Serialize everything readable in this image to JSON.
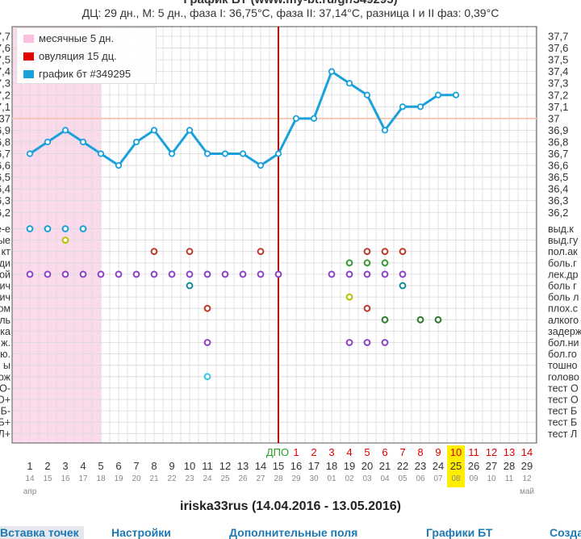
{
  "header": {
    "title": "График БТ (www.my-bt.ru/gr/349295)",
    "summary": "ДЦ: 29 дн., М: 5 дн., фаза I: 36,75°C, фаза II: 37,14°C, разница I и II фаз: 0,39°C",
    "footer": "iriska33rus (14.04.2016 - 13.05.2016)"
  },
  "legend": {
    "items": [
      {
        "label": "месячные 5 дн.",
        "color": "#f9c1dd"
      },
      {
        "label": "овуляция 15 дц.",
        "color": "#e00000"
      },
      {
        "label": "график бт #349295",
        "color": "#1aa1db"
      }
    ]
  },
  "nav": {
    "items": [
      "Вставка точек",
      "Настройки",
      "Дополнительные поля",
      "Графики БТ",
      "Создать"
    ]
  },
  "colors": {
    "temp_line": "#1aa1db",
    "menstruation": "#f9c1dd",
    "ovulation": "#c00000",
    "coverline": "#f4c6b6",
    "grid": "#d9d9d9",
    "dpo": "#28a028",
    "phase2_numbers": "#e00000",
    "today_highlight": "#ffee00"
  },
  "chart_data": {
    "type": "line",
    "title": "График БТ (www.my-bt.ru/gr/349295)",
    "x": [
      1,
      2,
      3,
      4,
      5,
      6,
      7,
      8,
      9,
      10,
      11,
      12,
      13,
      14,
      15,
      16,
      17,
      18,
      19,
      20,
      21,
      22,
      23,
      24,
      25,
      26,
      27,
      28,
      29
    ],
    "dates": [
      "14",
      "15",
      "16",
      "17",
      "18",
      "19",
      "20",
      "21",
      "22",
      "23",
      "24",
      "25",
      "26",
      "27",
      "28",
      "29",
      "30",
      "01",
      "02",
      "03",
      "04",
      "05",
      "06",
      "07",
      "08",
      "09",
      "10",
      "11",
      "12"
    ],
    "months": [
      {
        "label": "апр",
        "day": 1
      },
      {
        "label": "май",
        "day": 29
      }
    ],
    "series": [
      {
        "name": "график бт #349295",
        "values": [
          36.7,
          36.8,
          36.9,
          36.8,
          36.7,
          36.6,
          36.8,
          36.9,
          36.7,
          36.9,
          36.7,
          36.7,
          36.7,
          36.6,
          36.7,
          37.0,
          37.0,
          37.4,
          37.3,
          37.2,
          36.9,
          37.1,
          37.1,
          37.2,
          37.2,
          null,
          null,
          null,
          null
        ]
      }
    ],
    "ylim": [
      36.2,
      37.7
    ],
    "y_ticks": [
      "37,7",
      "37,6",
      "37,5",
      "37,4",
      "37,3",
      "37,2",
      "37,1",
      "37",
      "36,9",
      "36,8",
      "36,7",
      "36,6",
      "36,5",
      "36,4",
      "36,3",
      "36,2"
    ],
    "coverline": 37.0,
    "menstruation_days": [
      1,
      5
    ],
    "ovulation_day": 15,
    "dpo_label": "ДПО",
    "dpo_numbers": [
      "1",
      "2",
      "3",
      "4",
      "5",
      "6",
      "7",
      "8",
      "9",
      "10",
      "11",
      "12",
      "13",
      "14"
    ],
    "today_day": 25,
    "symptom_rows_left": [
      "е-е",
      "ые",
      "кт",
      "ди",
      "ой",
      "ич",
      "ич",
      "ом",
      "ль",
      "ка",
      "ж.",
      "ю.",
      "ы",
      "ож",
      "О-",
      "О+",
      "Б-",
      "Б+",
      "Л+"
    ],
    "symptom_rows_right": [
      "выд.к",
      "выд.гу",
      "пол.ак",
      "боль.г",
      "лек.др",
      "боль г",
      "боль л",
      "плох.с",
      "алкого",
      "задерж",
      "бол.ни",
      "бол.го",
      "тошно",
      "голово",
      "тест О",
      "тест О",
      "тест Б",
      "тест Б",
      "тест Л"
    ],
    "symptom_marks": [
      {
        "row": 0,
        "days": [
          1,
          2,
          3,
          4
        ],
        "color": "#1aa1db"
      },
      {
        "row": 1,
        "days": [
          3
        ],
        "color": "#b8c000"
      },
      {
        "row": 2,
        "days": [
          8,
          10,
          14,
          20,
          21,
          22
        ],
        "color": "#c0392b"
      },
      {
        "row": 3,
        "days": [
          19,
          20,
          21
        ],
        "color": "#3a9a3a"
      },
      {
        "row": 4,
        "days": [
          1,
          2,
          3,
          4,
          5,
          6,
          7,
          8,
          9,
          10,
          11,
          12,
          13,
          14,
          15,
          18,
          19,
          20,
          21,
          22
        ],
        "color": "#8b44c8"
      },
      {
        "row": 5,
        "days": [
          10,
          22
        ],
        "color": "#168a9a"
      },
      {
        "row": 6,
        "days": [
          19
        ],
        "color": "#b8c000"
      },
      {
        "row": 7,
        "days": [
          11,
          20
        ],
        "color": "#c0392b"
      },
      {
        "row": 8,
        "days": [
          21,
          23,
          24
        ],
        "color": "#2d7a2d"
      },
      {
        "row": 10,
        "days": [
          11,
          19,
          20,
          21
        ],
        "color": "#8b44c8"
      },
      {
        "row": 13,
        "days": [
          11
        ],
        "color": "#33c6e6"
      }
    ]
  }
}
